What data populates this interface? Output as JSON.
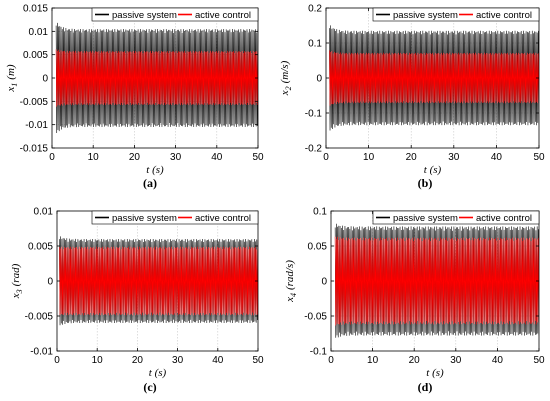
{
  "chart_data": [
    {
      "type": "line",
      "panel_label": "(a)",
      "xlabel": "t (s)",
      "ylabel_main": "x",
      "ylabel_sub": "1",
      "ylabel_unit": "(m)",
      "xlim": [
        0,
        50
      ],
      "ylim": [
        -0.015,
        0.015
      ],
      "xticks": [
        0,
        10,
        20,
        30,
        40,
        50
      ],
      "xtick_labels": [
        "0",
        "10",
        "20",
        "30",
        "40",
        "50"
      ],
      "yticks": [
        -0.015,
        -0.01,
        -0.005,
        0,
        0.005,
        0.01,
        0.015
      ],
      "ytick_labels": [
        "-0.015",
        "-0.01",
        "-0.005",
        "0",
        "0.005",
        "0.01",
        "0.015"
      ],
      "grid": true,
      "legend_position": "top-right",
      "series": [
        {
          "name": "passive system",
          "color": "#000000",
          "envelope": {
            "t_start": 1.0,
            "steady_amplitude": 0.0105,
            "peak_amplitude": 0.0122
          }
        },
        {
          "name": "active control",
          "color": "#ff0000",
          "envelope": {
            "t_start": 1.0,
            "steady_amplitude": 0.0058,
            "peak_amplitude": 0.0062
          }
        }
      ]
    },
    {
      "type": "line",
      "panel_label": "(b)",
      "xlabel": "t (s)",
      "ylabel_main": "x",
      "ylabel_sub": "2",
      "ylabel_unit": "(m/s)",
      "xlim": [
        0,
        50
      ],
      "ylim": [
        -0.2,
        0.2
      ],
      "xticks": [
        0,
        10,
        20,
        30,
        40,
        50
      ],
      "xtick_labels": [
        "0",
        "10",
        "20",
        "30",
        "40",
        "50"
      ],
      "yticks": [
        -0.2,
        -0.1,
        0,
        0.1,
        0.2
      ],
      "ytick_labels": [
        "-0.2",
        "-0.1",
        "0",
        "0.1",
        "0.2"
      ],
      "grid": true,
      "legend_position": "top-right",
      "series": [
        {
          "name": "passive system",
          "color": "#000000",
          "envelope": {
            "t_start": 0.8,
            "steady_amplitude": 0.135,
            "peak_amplitude": 0.155
          }
        },
        {
          "name": "active control",
          "color": "#ff0000",
          "envelope": {
            "t_start": 0.8,
            "steady_amplitude": 0.072,
            "peak_amplitude": 0.08
          }
        }
      ]
    },
    {
      "type": "line",
      "panel_label": "(c)",
      "xlabel": "t (s)",
      "ylabel_main": "x",
      "ylabel_sub": "3",
      "ylabel_unit": "(rad)",
      "xlim": [
        0,
        50
      ],
      "ylim": [
        -0.01,
        0.01
      ],
      "xticks": [
        0,
        10,
        20,
        30,
        40,
        50
      ],
      "xtick_labels": [
        "0",
        "10",
        "20",
        "30",
        "40",
        "50"
      ],
      "yticks": [
        -0.01,
        -0.005,
        0,
        0.005,
        0.01
      ],
      "ytick_labels": [
        "-0.01",
        "-0.005",
        "0",
        "0.005",
        "0.01"
      ],
      "grid": true,
      "legend_position": "top-right",
      "series": [
        {
          "name": "passive system",
          "color": "#000000",
          "envelope": {
            "t_start": 0.6,
            "steady_amplitude": 0.006,
            "peak_amplitude": 0.0065
          }
        },
        {
          "name": "active control",
          "color": "#ff0000",
          "envelope": {
            "t_start": 0.6,
            "steady_amplitude": 0.0049,
            "peak_amplitude": 0.0049
          }
        }
      ]
    },
    {
      "type": "line",
      "panel_label": "(d)",
      "xlabel": "t (s)",
      "ylabel_main": "x",
      "ylabel_sub": "4",
      "ylabel_unit": "(rad/s)",
      "xlim": [
        0,
        50
      ],
      "ylim": [
        -0.1,
        0.1
      ],
      "xticks": [
        0,
        10,
        20,
        30,
        40,
        50
      ],
      "xtick_labels": [
        "0",
        "10",
        "20",
        "30",
        "40",
        "50"
      ],
      "yticks": [
        -0.1,
        -0.05,
        0,
        0.05,
        0.1
      ],
      "ytick_labels": [
        "-0.1",
        "-0.05",
        "0",
        "0.05",
        "0.1"
      ],
      "grid": true,
      "legend_position": "top-right",
      "series": [
        {
          "name": "passive system",
          "color": "#000000",
          "envelope": {
            "t_start": 1.0,
            "steady_amplitude": 0.078,
            "peak_amplitude": 0.083
          }
        },
        {
          "name": "active control",
          "color": "#ff0000",
          "envelope": {
            "t_start": 1.0,
            "steady_amplitude": 0.062,
            "peak_amplitude": 0.064
          }
        }
      ]
    }
  ]
}
